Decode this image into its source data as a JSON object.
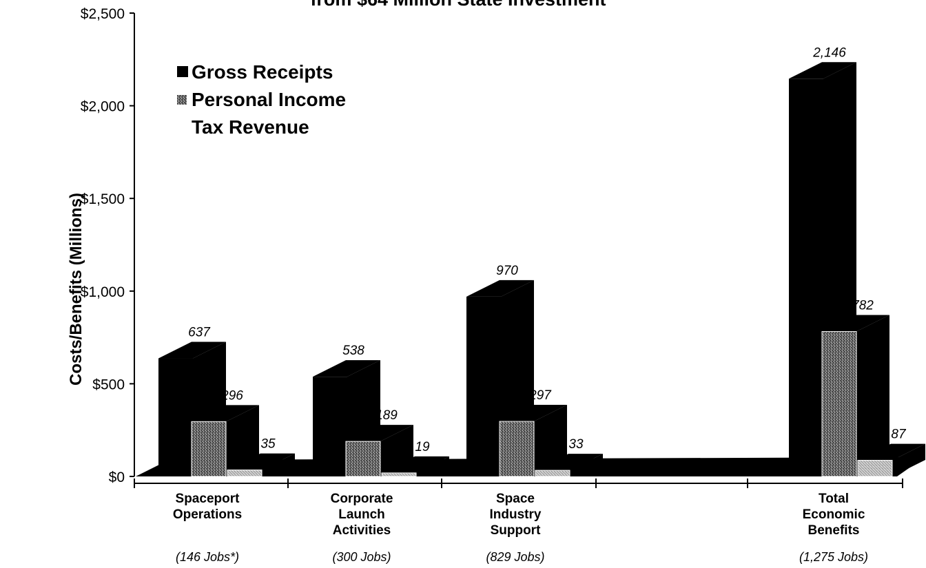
{
  "chart_data": {
    "type": "bar",
    "title": "from $64 Million State Investment",
    "ylabel": "Costs/Benefits (Millions)",
    "xlabel": "",
    "ylim": [
      0,
      2500
    ],
    "yticks": [
      0,
      500,
      1000,
      1500,
      2000,
      2500
    ],
    "ytick_labels": [
      "$0",
      "$500",
      "$1,000",
      "$1,500",
      "$2,000",
      "$2,500"
    ],
    "grid": false,
    "legend_position": "top-left",
    "legend": [
      "Gross Receipts",
      "Personal Income",
      "Tax Revenue"
    ],
    "categories": [
      {
        "lines": [
          "Spaceport",
          "Operations"
        ],
        "jobs": "(146 Jobs*)"
      },
      {
        "lines": [
          "Corporate",
          "Launch",
          "Activities"
        ],
        "jobs": "(300 Jobs)"
      },
      {
        "lines": [
          "Space",
          "Industry",
          "Support"
        ],
        "jobs": "(829 Jobs)"
      },
      {
        "lines": [],
        "jobs": ""
      },
      {
        "lines": [
          "Total",
          "Economic",
          "Benefits"
        ],
        "jobs": "(1,275 Jobs)"
      }
    ],
    "series": [
      {
        "values": [
          637,
          538,
          970,
          null,
          2146
        ],
        "labels": [
          "637",
          "538",
          "970",
          "",
          "2,146"
        ]
      },
      {
        "values": [
          296,
          189,
          297,
          null,
          782
        ],
        "labels": [
          "296",
          "189",
          "297",
          "",
          "782"
        ]
      },
      {
        "values": [
          35,
          19,
          33,
          null,
          87
        ],
        "labels": [
          "35",
          "19",
          "33",
          "",
          "87"
        ]
      }
    ],
    "colors": {
      "series1": "#000000",
      "series2": "#555555",
      "series3": "#bbbbbb",
      "axis": "#000000"
    }
  }
}
